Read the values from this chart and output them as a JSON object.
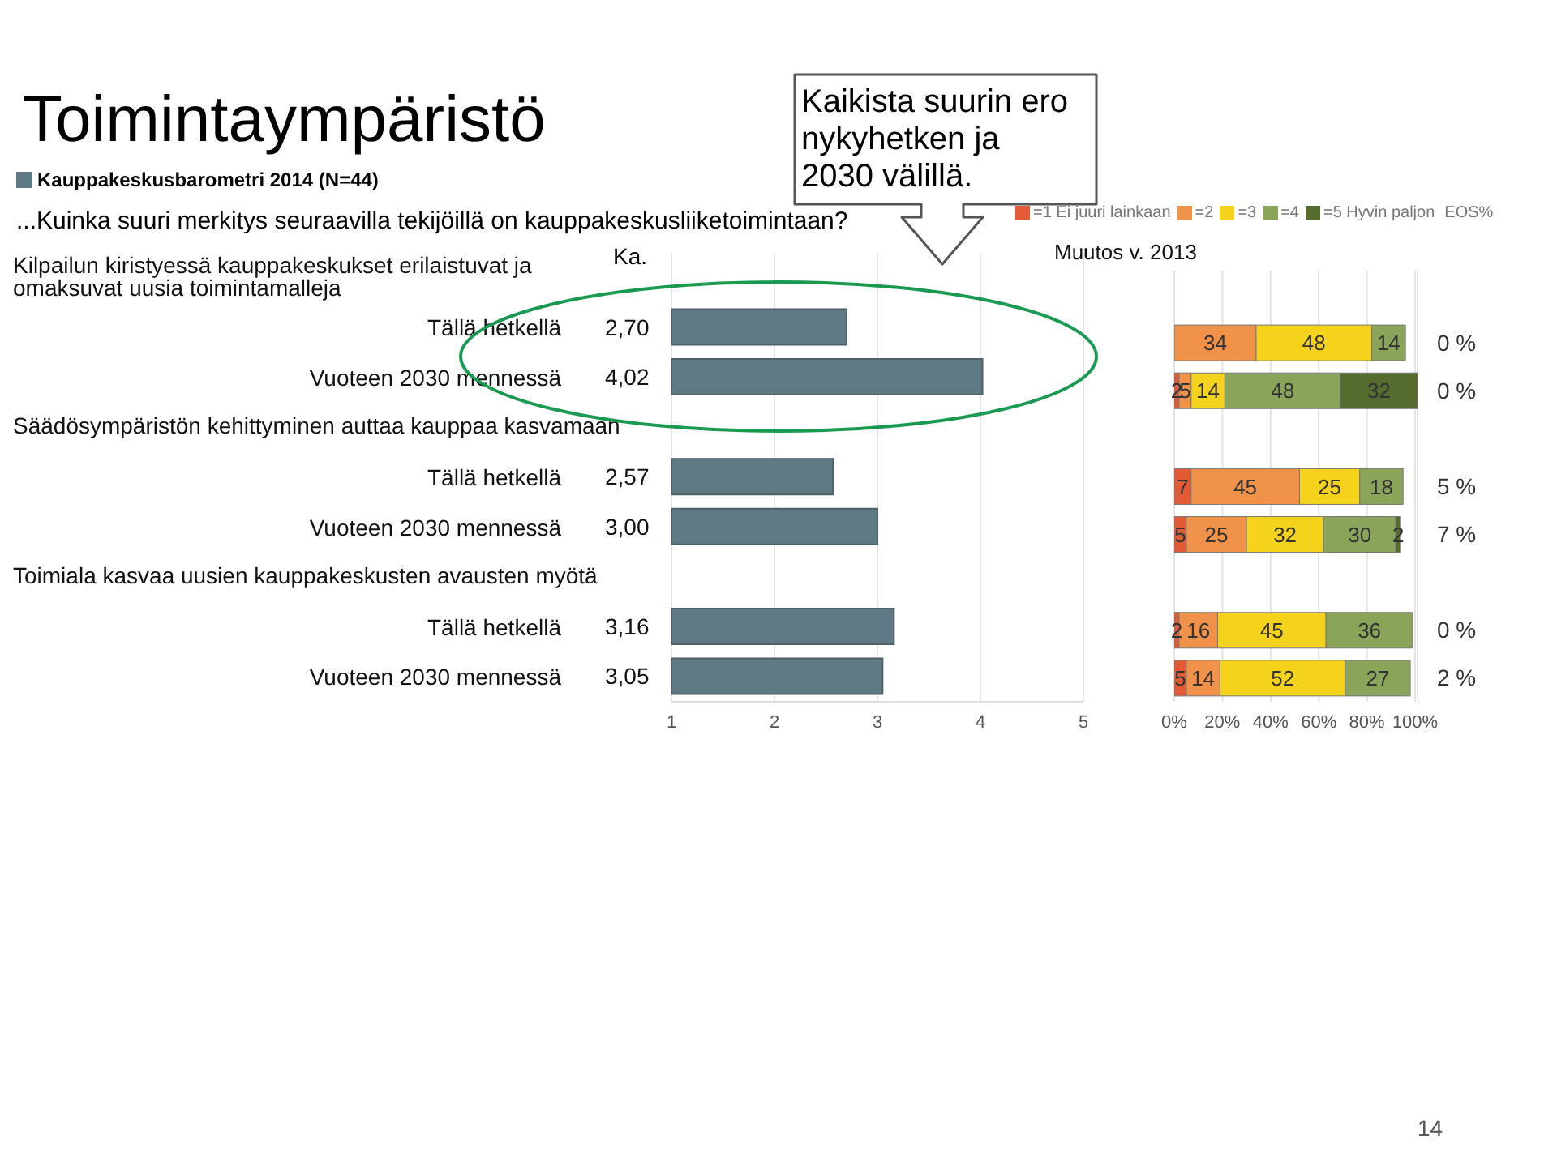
{
  "chart_data": [
    {
      "type": "bar",
      "orientation": "horizontal",
      "title": "Toimintaympäristö",
      "subtitle": "Kauppakeskusbarometri 2014 (N=44)",
      "annotations": [
        "...Kuinka suuri merkitys seuraavilla tekijöillä on kauppakeskusliiketoimintaan?",
        "Ka.",
        "Kaikista suurin ero nykyhetken ja 2030 välillä.",
        "14",
        "Kilpailun kiristyessä kauppakeskukset erilaistuvat ja omaksuvat uusia toimintamalleja",
        "Säädösympäristön kehittyminen auttaa kauppaa kasvamaan",
        "Toimiala kasvaa uusien kauppakeskusten avausten myötä"
      ],
      "categories": [
        null,
        "Tällä hetkellä",
        "Vuoteen 2030 mennessä",
        null,
        "Tällä hetkellä",
        "Vuoteen 2030 mennessä",
        null,
        "Tällä hetkellä",
        "Vuoteen 2030 mennessä"
      ],
      "values": [
        null,
        2.7,
        4.02,
        null,
        2.57,
        3.0,
        null,
        3.16,
        3.05
      ],
      "value_labels": [
        null,
        "2,70",
        "4,02",
        null,
        "2,57",
        "3,00",
        null,
        "3,16",
        "3,05"
      ],
      "color": "#5f7a84",
      "xlim": [
        1,
        5
      ],
      "xticks": [
        1,
        2,
        3,
        4,
        5
      ],
      "grid": "x"
    },
    {
      "type": "bar",
      "orientation": "horizontal",
      "stacked": true,
      "subtitle": "Muutos v. 2013",
      "annotations": [
        "EOS%",
        "0 %",
        "0 %",
        "5 %",
        "7 %",
        "0 %",
        "2 %"
      ],
      "categories": [
        null,
        null,
        null,
        null,
        null,
        null,
        null,
        null,
        null
      ],
      "series": [
        {
          "name": "=1 Ei juuri lainkaan",
          "color": "#e35a36",
          "values": [
            null,
            null,
            2,
            null,
            7,
            5,
            null,
            2,
            5
          ]
        },
        {
          "name": "=2",
          "color": "#f0924a",
          "values": [
            null,
            34,
            5,
            null,
            45,
            25,
            null,
            16,
            14
          ]
        },
        {
          "name": "=3",
          "color": "#f5d21b",
          "values": [
            null,
            48,
            14,
            null,
            25,
            32,
            null,
            45,
            52
          ]
        },
        {
          "name": "=4",
          "color": "#8aa45a",
          "values": [
            null,
            14,
            48,
            null,
            18,
            30,
            null,
            36,
            27
          ]
        },
        {
          "name": "=5 Hyvin paljon",
          "color": "#566b2e",
          "values": [
            null,
            null,
            32,
            null,
            null,
            2,
            null,
            null,
            null
          ]
        }
      ],
      "data_labels": true,
      "legend": "top",
      "xlim": [
        0,
        101
      ],
      "xticks": [
        {
          "value": 0,
          "label": "0%"
        },
        {
          "value": 20,
          "label": "20%"
        },
        {
          "value": 40,
          "label": "40%"
        },
        {
          "value": 60,
          "label": "60%"
        },
        {
          "value": 80,
          "label": "80%"
        },
        {
          "value": 100,
          "label": "100%"
        }
      ],
      "grid": "x",
      "tick_labels": "x"
    }
  ]
}
